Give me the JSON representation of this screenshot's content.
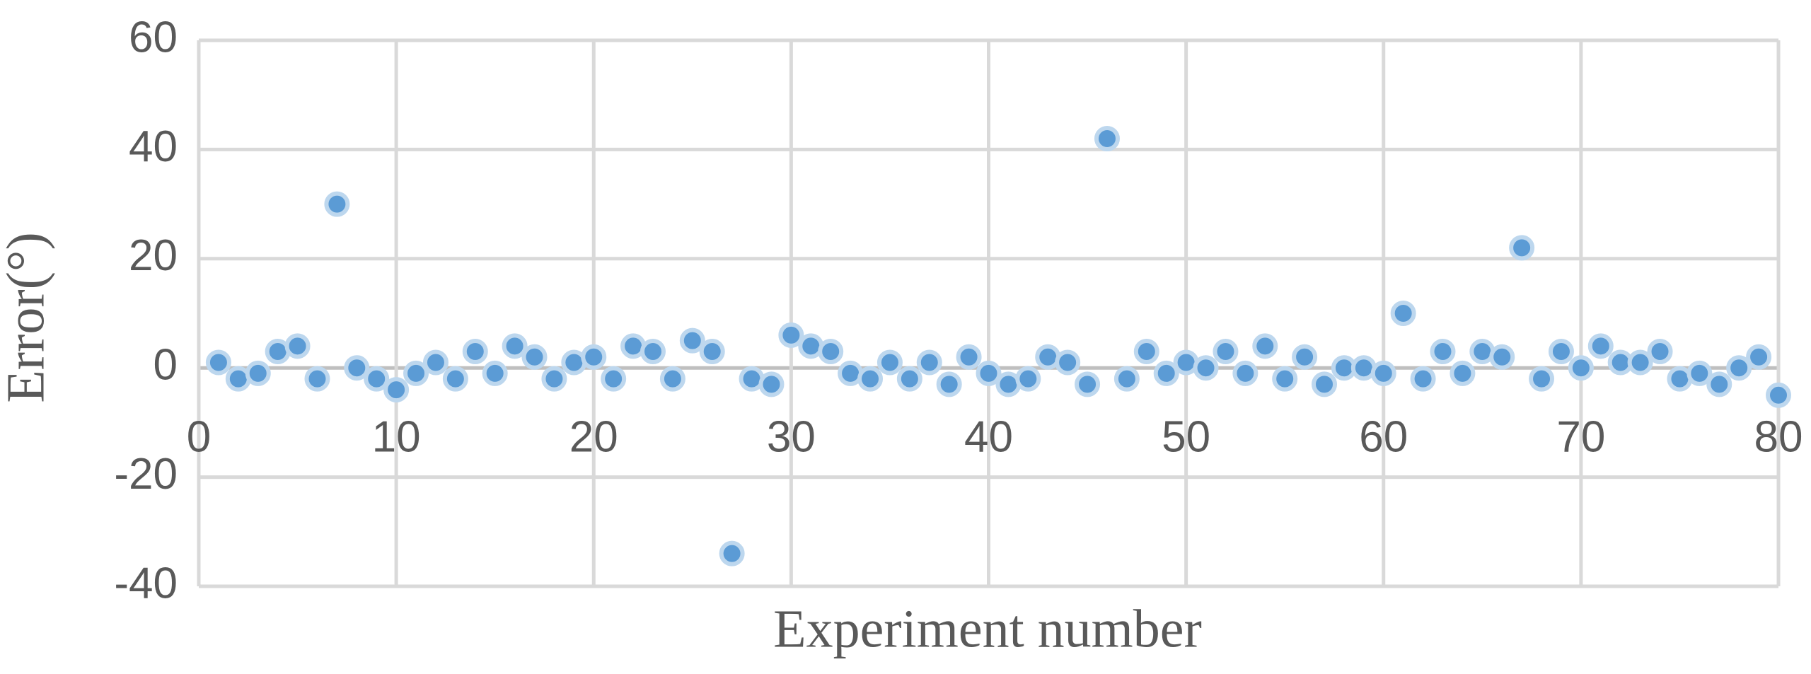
{
  "chart_data": {
    "type": "scatter",
    "x_label": "Experiment number",
    "y_label": "Error(°)",
    "xlim": [
      0,
      80
    ],
    "xticks": [
      0,
      10,
      20,
      30,
      40,
      50,
      60,
      70,
      80
    ],
    "ylim": [
      -40,
      60
    ],
    "yticks": [
      -40,
      -20,
      0,
      20,
      40,
      60
    ],
    "grid": true,
    "color": "#5b9bd5",
    "x": [
      1,
      2,
      3,
      4,
      5,
      6,
      7,
      8,
      9,
      10,
      11,
      12,
      13,
      14,
      15,
      16,
      17,
      18,
      19,
      20,
      21,
      22,
      23,
      24,
      25,
      26,
      27,
      28,
      29,
      30,
      31,
      32,
      33,
      34,
      35,
      36,
      37,
      38,
      39,
      40,
      41,
      42,
      43,
      44,
      45,
      46,
      47,
      48,
      49,
      50,
      51,
      52,
      53,
      54,
      55,
      56,
      57,
      58,
      59,
      60,
      61,
      62,
      63,
      64,
      65,
      66,
      67,
      68,
      69,
      70,
      71,
      72,
      73,
      74,
      75,
      76,
      77,
      78,
      79,
      80
    ],
    "values": [
      1,
      -2,
      -1,
      3,
      4,
      -2,
      30,
      0,
      -2,
      -4,
      -1,
      1,
      -2,
      3,
      -1,
      4,
      2,
      -2,
      1,
      2,
      -2,
      4,
      3,
      -2,
      5,
      3,
      -34,
      -2,
      -3,
      6,
      4,
      3,
      -1,
      -2,
      1,
      -2,
      1,
      -3,
      2,
      -1,
      -3,
      -2,
      2,
      1,
      -3,
      42,
      -2,
      3,
      -1,
      1,
      0,
      3,
      -1,
      4,
      -2,
      2,
      -3,
      0,
      0,
      -1,
      10,
      -2,
      3,
      -1,
      3,
      2,
      22,
      -2,
      3,
      0,
      4,
      1,
      1,
      3,
      -2,
      -1,
      -3,
      0,
      2,
      -5
    ]
  }
}
